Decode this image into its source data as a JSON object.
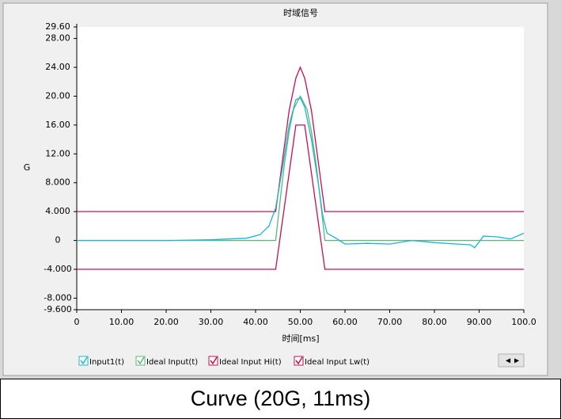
{
  "chart_data": {
    "type": "line",
    "title": "时域信号",
    "x_label": "时间[ms]",
    "y_label": "G",
    "xlim": [
      0,
      100
    ],
    "ylim": [
      -9.6,
      29.6
    ],
    "xticks": [
      0,
      {
        "value": 10,
        "label": "10.00"
      },
      {
        "value": 20,
        "label": "20.00"
      },
      {
        "value": 30,
        "label": "30.00"
      },
      {
        "value": 40,
        "label": "40.00"
      },
      {
        "value": 50,
        "label": "50.00"
      },
      {
        "value": 60,
        "label": "60.00"
      },
      {
        "value": 70,
        "label": "70.00"
      },
      {
        "value": 80,
        "label": "80.00"
      },
      {
        "value": 90,
        "label": "90.00"
      },
      {
        "value": 100,
        "label": "100.0"
      }
    ],
    "yticks": [
      {
        "value": 29.6,
        "label": "29.60"
      },
      {
        "value": 28,
        "label": "28.00"
      },
      {
        "value": 24,
        "label": "24.00"
      },
      {
        "value": 20,
        "label": "20.00"
      },
      {
        "value": 16,
        "label": "16.00"
      },
      {
        "value": 12,
        "label": "12.00"
      },
      {
        "value": 8,
        "label": "8.000"
      },
      {
        "value": 4,
        "label": "4.000"
      },
      0,
      {
        "value": -4,
        "label": "-4.000"
      },
      {
        "value": -8,
        "label": "-8.000"
      },
      {
        "value": -9.6,
        "label": "-9.600"
      }
    ],
    "grid": false,
    "series": [
      {
        "name": "Input1(t)",
        "color": "#1cb5d6",
        "x": [
          0,
          10,
          20,
          30,
          38,
          41,
          43,
          44.5,
          46,
          47.5,
          49,
          50,
          51,
          52.5,
          54,
          55,
          56,
          58,
          60,
          65,
          70,
          75,
          80,
          85,
          88,
          89,
          91,
          94,
          97,
          100
        ],
        "values": [
          0,
          0,
          0,
          0.1,
          0.3,
          0.8,
          2,
          4.5,
          10,
          16,
          19.5,
          19.8,
          18.5,
          14,
          8,
          3.5,
          1,
          0.3,
          -0.5,
          -0.4,
          -0.5,
          0,
          -0.3,
          -0.5,
          -0.6,
          -1,
          0.6,
          0.5,
          0.2,
          1
        ]
      },
      {
        "name": "Ideal Input(t)",
        "color": "#5cb87a",
        "x": [
          0,
          44.5,
          45.5,
          46.5,
          47.5,
          48.5,
          50,
          51.5,
          52.5,
          53.5,
          54.5,
          55.5,
          100
        ],
        "values": [
          0,
          0,
          5.6,
          10.8,
          15.1,
          18.2,
          20,
          18.2,
          15.1,
          10.8,
          5.6,
          0,
          0
        ]
      },
      {
        "name": "Ideal Input Hi(t)",
        "color": "#c8104f",
        "x": [
          0,
          44.5,
          46,
          47.5,
          49,
          50,
          51,
          52.5,
          54,
          55.5,
          100
        ],
        "values": [
          4,
          4,
          11,
          18,
          22.5,
          24,
          22.5,
          18,
          11,
          4,
          4
        ]
      },
      {
        "name": "Ideal Input Lw(t)",
        "color": "#c8104f",
        "x": [
          0,
          44.5,
          49,
          51,
          55.5,
          100
        ],
        "values": [
          -4,
          -4,
          16,
          16,
          -4,
          -4
        ]
      }
    ]
  },
  "caption": "Curve (20G, 11ms)"
}
